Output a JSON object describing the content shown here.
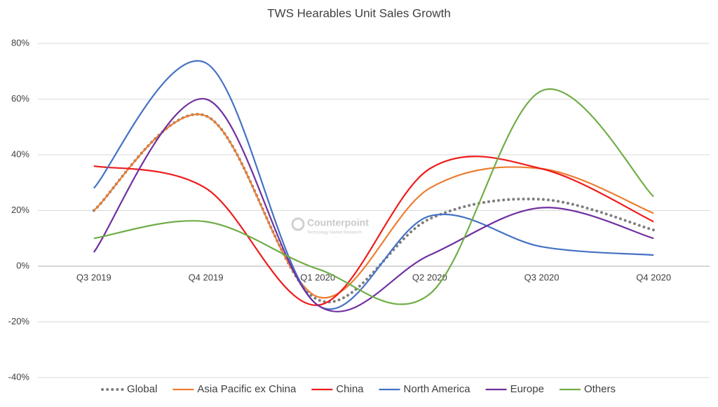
{
  "chart_data": {
    "type": "line",
    "title": "TWS Hearables Unit Sales Growth",
    "watermark": {
      "brand": "Counterpoint",
      "tagline": "Technology Market Research"
    },
    "categories": [
      "Q3 2019",
      "Q4 2019",
      "Q1 2020",
      "Q2 2020",
      "Q3 2020",
      "Q4 2020"
    ],
    "series": [
      {
        "name": "Global",
        "color": "#7f7f7f",
        "dotted": true,
        "values": [
          20,
          54,
          -12,
          17,
          24,
          13
        ]
      },
      {
        "name": "Asia Pacific ex China",
        "color": "#ed7d31",
        "values": [
          20,
          54,
          -11,
          28,
          35,
          19
        ]
      },
      {
        "name": "China",
        "color": "#ee1c1c",
        "values": [
          36,
          28,
          -14,
          35,
          35,
          16
        ]
      },
      {
        "name": "North America",
        "color": "#4472c4",
        "values": [
          28,
          73,
          -14,
          18,
          7,
          4
        ]
      },
      {
        "name": "Europe",
        "color": "#7030a0",
        "values": [
          5,
          60,
          -14,
          4,
          21,
          10
        ]
      },
      {
        "name": "Others",
        "color": "#70ad47",
        "values": [
          10,
          16,
          -1,
          -10,
          63,
          25
        ]
      }
    ],
    "ylim": [
      -40,
      80
    ],
    "yticks": [
      {
        "value": -40,
        "label": "-40%"
      },
      {
        "value": -20,
        "label": "-20%"
      },
      {
        "value": 0,
        "label": "0%"
      },
      {
        "value": 20,
        "label": "20%"
      },
      {
        "value": 40,
        "label": "40%"
      },
      {
        "value": 60,
        "label": "60%"
      },
      {
        "value": 80,
        "label": "80%"
      }
    ],
    "grid": true,
    "legend": "bottom"
  }
}
